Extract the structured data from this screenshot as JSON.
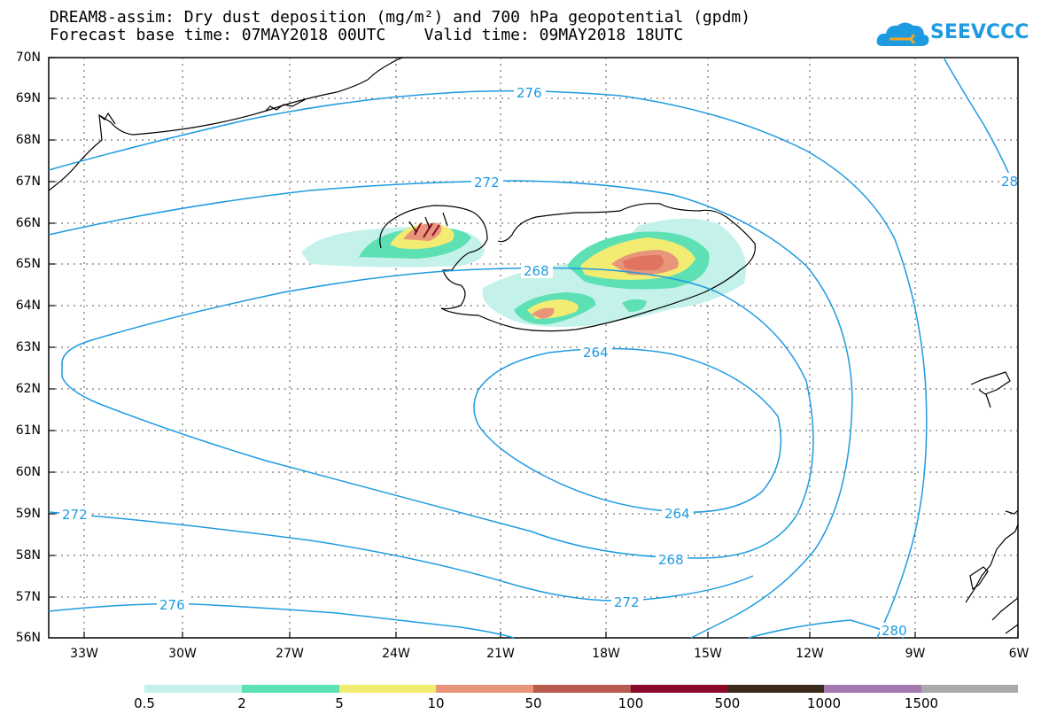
{
  "title": {
    "line1": "DREAM8-assim: Dry dust deposition (mg/m²) and 700 hPa geopotential (gpdm)",
    "line2": "Forecast base time: 07MAY2018 00UTC    Valid time: 09MAY2018 18UTC"
  },
  "logo": {
    "text": "SEEVCCC",
    "icon": "cloud-logo-icon"
  },
  "map": {
    "lat_labels": [
      "70N",
      "69N",
      "68N",
      "67N",
      "66N",
      "65N",
      "64N",
      "63N",
      "62N",
      "61N",
      "60N",
      "59N",
      "58N",
      "57N",
      "56N"
    ],
    "lon_labels": [
      "33W",
      "30W",
      "27W",
      "24W",
      "21W",
      "18W",
      "15W",
      "12W",
      "9W",
      "6W"
    ],
    "contour_color": "#1e9be0",
    "contour_labels": [
      "276",
      "272",
      "268",
      "264",
      "264",
      "268",
      "272",
      "276",
      "272",
      "280",
      "28"
    ]
  },
  "colorbar": {
    "colors": [
      "#c4f2ea",
      "#5ce0b4",
      "#f2ec72",
      "#e8957a",
      "#b85b4e",
      "#8a0a2c",
      "#3a2a1a",
      "#a27ab0",
      "#aaaaaa"
    ],
    "labels": [
      "0.5",
      "2",
      "5",
      "10",
      "50",
      "100",
      "500",
      "1000",
      "1500"
    ]
  }
}
